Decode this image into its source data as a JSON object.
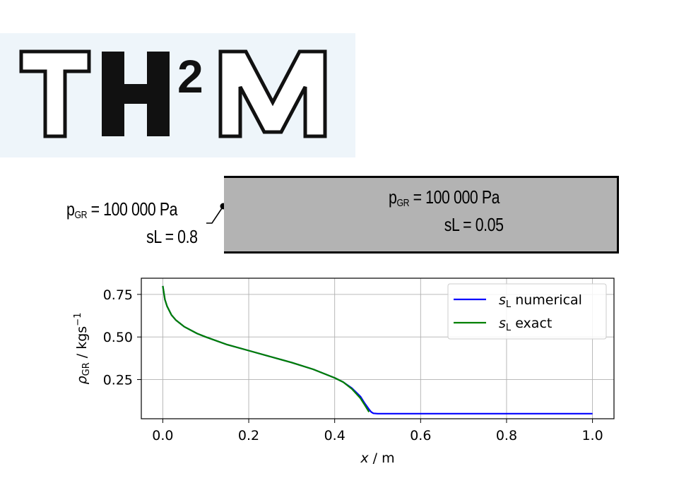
{
  "logo": {
    "letter_t": "T",
    "letter_h": "H",
    "exponent": "2",
    "letter_m": "M",
    "bg_color": "#eef5fa"
  },
  "boundary_left": {
    "pressure_symbol": "p",
    "pressure_sub": "GR",
    "pressure_value": "=  100 000 Pa",
    "saturation": "sL = 0.8"
  },
  "domain_initial": {
    "pressure_symbol": "p",
    "pressure_sub": "GR",
    "pressure_value": "=  100 000 Pa",
    "saturation": "sL = 0.05",
    "fill_color": "#b3b3b3"
  },
  "chart_data": {
    "type": "line",
    "xlabel_var": "x",
    "xlabel_unit": " / m",
    "ylabel_var": "ρ",
    "ylabel_sub": "GR",
    "ylabel_unit": " / kgs",
    "ylabel_exp": "−1",
    "xlim": [
      -0.05,
      1.05
    ],
    "ylim": [
      0.02,
      0.845
    ],
    "xticks": [
      0.0,
      0.2,
      0.4,
      0.6,
      0.8,
      1.0
    ],
    "xtick_labels": [
      "0.0",
      "0.2",
      "0.4",
      "0.6",
      "0.8",
      "1.0"
    ],
    "yticks": [
      0.25,
      0.5,
      0.75
    ],
    "ytick_labels": [
      "0.25",
      "0.50",
      "0.75"
    ],
    "grid": true,
    "legend_position": "top-right",
    "series": [
      {
        "name_var": "s",
        "name_sub": "L",
        "name_text": " numerical",
        "color": "#0000ff",
        "x": [
          0.0,
          0.005,
          0.01,
          0.02,
          0.03,
          0.05,
          0.08,
          0.1,
          0.15,
          0.2,
          0.25,
          0.3,
          0.35,
          0.4,
          0.42,
          0.44,
          0.46,
          0.47,
          0.48,
          0.485,
          0.49,
          0.5,
          0.6,
          0.7,
          0.8,
          0.9,
          1.0
        ],
        "y": [
          0.8,
          0.72,
          0.68,
          0.63,
          0.6,
          0.56,
          0.52,
          0.5,
          0.455,
          0.42,
          0.385,
          0.35,
          0.31,
          0.26,
          0.235,
          0.2,
          0.15,
          0.11,
          0.075,
          0.06,
          0.052,
          0.05,
          0.05,
          0.05,
          0.05,
          0.05,
          0.05
        ]
      },
      {
        "name_var": "s",
        "name_sub": "L",
        "name_text": " exact",
        "color": "#008000",
        "x": [
          0.0,
          0.005,
          0.01,
          0.02,
          0.03,
          0.05,
          0.08,
          0.1,
          0.15,
          0.2,
          0.25,
          0.3,
          0.35,
          0.4,
          0.42,
          0.44,
          0.46,
          0.47,
          0.48
        ],
        "y": [
          0.8,
          0.72,
          0.68,
          0.63,
          0.6,
          0.56,
          0.52,
          0.5,
          0.455,
          0.42,
          0.385,
          0.35,
          0.31,
          0.26,
          0.235,
          0.195,
          0.14,
          0.1,
          0.06
        ]
      }
    ]
  }
}
